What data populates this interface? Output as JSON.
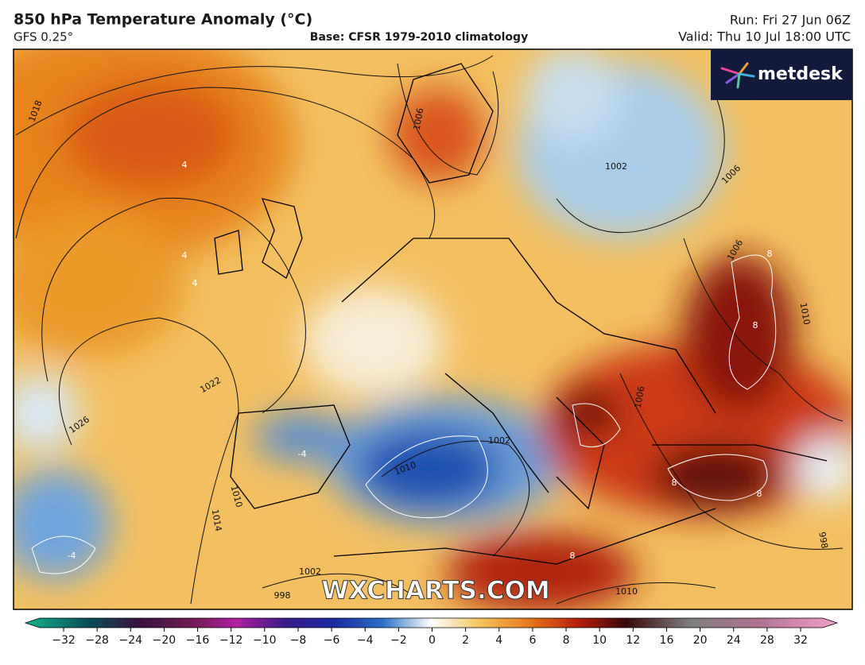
{
  "header": {
    "title": "850 hPa Temperature Anomaly (°C)",
    "model": "GFS 0.25°",
    "base": "Base: CFSR 1979-2010 climatology",
    "run": "Run: Fri 27 Jun 06Z",
    "valid": "Valid: Thu 10 Jul 18:00 UTC"
  },
  "logo": "metdesk",
  "watermark": "WXCHARTS.COM",
  "map": {
    "isobar_labels": [
      "1018",
      "1022",
      "1026",
      "1014",
      "1010",
      "1006",
      "1006",
      "1006",
      "1006",
      "1002",
      "1002",
      "1002",
      "1010",
      "1010",
      "998",
      "998",
      "1010"
    ],
    "anomaly_labels": [
      "4",
      "4",
      "4",
      "-4",
      "-4",
      "8",
      "8",
      "8",
      "8",
      "8"
    ]
  },
  "colorbar": {
    "ticks": [
      {
        "value": -32,
        "label": "−32"
      },
      {
        "value": -28,
        "label": "−28"
      },
      {
        "value": -24,
        "label": "−24"
      },
      {
        "value": -20,
        "label": "−20"
      },
      {
        "value": -16,
        "label": "−16"
      },
      {
        "value": -12,
        "label": "−12"
      },
      {
        "value": -10,
        "label": "−10"
      },
      {
        "value": -8,
        "label": "−8"
      },
      {
        "value": -6,
        "label": "−6"
      },
      {
        "value": -4,
        "label": "−4"
      },
      {
        "value": -2,
        "label": "−2"
      },
      0,
      2,
      4,
      6,
      8,
      10,
      12,
      16,
      20,
      24,
      28,
      32
    ]
  }
}
